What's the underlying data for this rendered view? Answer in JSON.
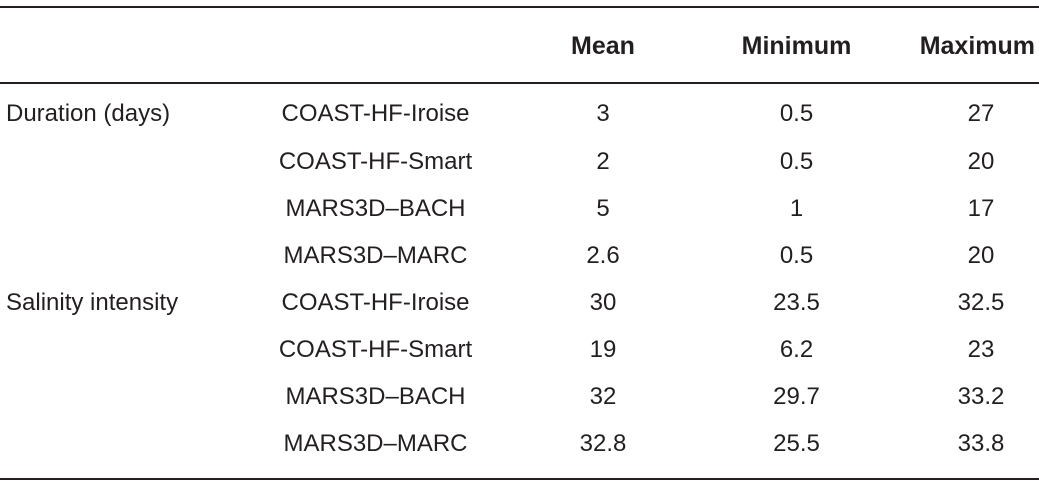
{
  "table": {
    "headers": {
      "variable": "",
      "model": "",
      "mean": "Mean",
      "minimum": "Minimum",
      "maximum": "Maximum"
    },
    "rows": [
      {
        "variable": "Duration (days)",
        "model": "COAST-HF-Iroise",
        "mean": "3",
        "minimum": "0.5",
        "maximum": "27"
      },
      {
        "variable": "",
        "model": "COAST-HF-Smart",
        "mean": "2",
        "minimum": "0.5",
        "maximum": "20"
      },
      {
        "variable": "",
        "model": "MARS3D–BACH",
        "mean": "5",
        "minimum": "1",
        "maximum": "17"
      },
      {
        "variable": "",
        "model": "MARS3D–MARC",
        "mean": "2.6",
        "minimum": "0.5",
        "maximum": "20"
      },
      {
        "variable": "Salinity intensity",
        "model": "COAST-HF-Iroise",
        "mean": "30",
        "minimum": "23.5",
        "maximum": "32.5"
      },
      {
        "variable": "",
        "model": "COAST-HF-Smart",
        "mean": "19",
        "minimum": "6.2",
        "maximum": "23"
      },
      {
        "variable": "",
        "model": "MARS3D–BACH",
        "mean": "32",
        "minimum": "29.7",
        "maximum": "33.2"
      },
      {
        "variable": "",
        "model": "MARS3D–MARC",
        "mean": "32.8",
        "minimum": "25.5",
        "maximum": "33.8"
      }
    ]
  }
}
